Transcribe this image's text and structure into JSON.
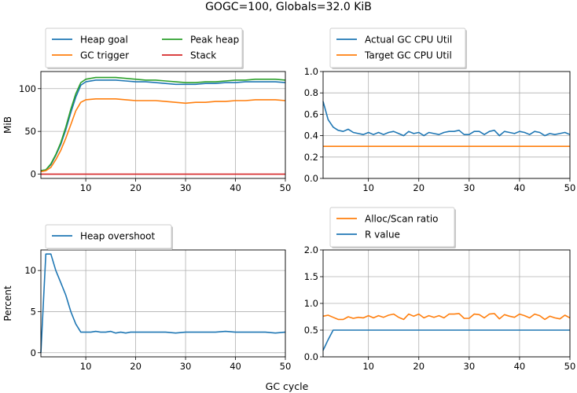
{
  "figure": {
    "title": "GOGC=100, Globals=32.0 KiB",
    "shared_xlabel": "GC cycle"
  },
  "chart_data": [
    {
      "type": "line",
      "panel": "top-left",
      "title": "",
      "xlabel": "",
      "ylabel": "MiB",
      "xlim": [
        1,
        50
      ],
      "ylim": [
        -5,
        120
      ],
      "xticks": [
        10,
        20,
        30,
        40,
        50
      ],
      "yticks": [
        0,
        50,
        100
      ],
      "grid": true,
      "legend": {
        "placement": "above",
        "columns": 2
      },
      "series": [
        {
          "name": "Heap goal",
          "color": "#1f77b4",
          "x": [
            1,
            2,
            3,
            4,
            5,
            6,
            7,
            8,
            9,
            10,
            12,
            14,
            16,
            18,
            20,
            22,
            24,
            26,
            28,
            30,
            32,
            34,
            36,
            38,
            40,
            42,
            44,
            46,
            48,
            50
          ],
          "y": [
            4,
            5,
            11,
            22,
            35,
            52,
            72,
            90,
            104,
            108,
            110,
            110,
            110,
            109,
            108,
            108,
            107,
            106,
            105,
            105,
            105,
            106,
            106,
            107,
            107,
            108,
            108,
            108,
            108,
            107
          ]
        },
        {
          "name": "Peak heap",
          "color": "#2ca02c",
          "x": [
            1,
            2,
            3,
            4,
            5,
            6,
            7,
            8,
            9,
            10,
            12,
            14,
            16,
            18,
            20,
            22,
            24,
            26,
            28,
            30,
            32,
            34,
            36,
            38,
            40,
            42,
            44,
            46,
            48,
            50
          ],
          "y": [
            4,
            5,
            12,
            23,
            37,
            55,
            76,
            94,
            107,
            111,
            113,
            113,
            113,
            112,
            111,
            110,
            110,
            109,
            108,
            107,
            107,
            108,
            108,
            109,
            110,
            110,
            111,
            111,
            111,
            110
          ]
        },
        {
          "name": "GC trigger",
          "color": "#ff7f0e",
          "x": [
            1,
            2,
            3,
            4,
            5,
            6,
            7,
            8,
            9,
            10,
            12,
            14,
            16,
            18,
            20,
            22,
            24,
            26,
            28,
            30,
            32,
            34,
            36,
            38,
            40,
            42,
            44,
            46,
            48,
            50
          ],
          "y": [
            3,
            4,
            8,
            17,
            28,
            42,
            58,
            74,
            84,
            87,
            88,
            88,
            88,
            87,
            86,
            86,
            86,
            85,
            84,
            83,
            84,
            84,
            85,
            85,
            86,
            86,
            87,
            87,
            87,
            86
          ]
        },
        {
          "name": "Stack",
          "color": "#d62728",
          "x": [
            1,
            50
          ],
          "y": [
            0,
            0
          ]
        }
      ]
    },
    {
      "type": "line",
      "panel": "top-right",
      "title": "",
      "xlabel": "",
      "ylabel": "",
      "xlim": [
        1,
        50
      ],
      "ylim": [
        0,
        1.0
      ],
      "xticks": [
        10,
        20,
        30,
        40,
        50
      ],
      "yticks": [
        "0.0",
        "0.2",
        "0.4",
        "0.6",
        "0.8",
        "1.0"
      ],
      "grid": true,
      "legend": {
        "placement": "above",
        "columns": 1
      },
      "series": [
        {
          "name": "Actual GC CPU Util",
          "color": "#1f77b4",
          "x": [
            1,
            2,
            3,
            4,
            5,
            6,
            7,
            8,
            9,
            10,
            11,
            12,
            13,
            14,
            15,
            16,
            17,
            18,
            19,
            20,
            21,
            22,
            23,
            24,
            25,
            26,
            27,
            28,
            29,
            30,
            31,
            32,
            33,
            34,
            35,
            36,
            37,
            38,
            39,
            40,
            41,
            42,
            43,
            44,
            45,
            46,
            47,
            48,
            49,
            50
          ],
          "y": [
            0.72,
            0.55,
            0.48,
            0.45,
            0.44,
            0.46,
            0.43,
            0.42,
            0.41,
            0.43,
            0.41,
            0.43,
            0.41,
            0.43,
            0.44,
            0.42,
            0.4,
            0.44,
            0.42,
            0.43,
            0.4,
            0.43,
            0.42,
            0.41,
            0.43,
            0.44,
            0.44,
            0.45,
            0.41,
            0.41,
            0.44,
            0.44,
            0.41,
            0.44,
            0.45,
            0.4,
            0.44,
            0.43,
            0.42,
            0.44,
            0.43,
            0.41,
            0.44,
            0.43,
            0.4,
            0.42,
            0.41,
            0.42,
            0.43,
            0.41
          ]
        },
        {
          "name": "Target GC CPU Util",
          "color": "#ff7f0e",
          "x": [
            1,
            50
          ],
          "y": [
            0.3,
            0.3
          ]
        }
      ]
    },
    {
      "type": "line",
      "panel": "bottom-left",
      "title": "",
      "xlabel": "",
      "ylabel": "Percent",
      "xlim": [
        1,
        50
      ],
      "ylim": [
        -0.5,
        12.5
      ],
      "xticks": [
        10,
        20,
        30,
        40,
        50
      ],
      "yticks": [
        0,
        5,
        10
      ],
      "grid": true,
      "legend": {
        "placement": "above",
        "columns": 1
      },
      "series": [
        {
          "name": "Heap overshoot",
          "color": "#1f77b4",
          "x": [
            1,
            2,
            3,
            4,
            5,
            6,
            7,
            8,
            9,
            10,
            11,
            12,
            13,
            14,
            15,
            16,
            17,
            18,
            19,
            20,
            22,
            24,
            26,
            28,
            30,
            32,
            34,
            36,
            38,
            40,
            42,
            44,
            46,
            48,
            50
          ],
          "y": [
            0,
            12,
            12,
            10,
            8.5,
            7,
            5,
            3.5,
            2.5,
            2.5,
            2.5,
            2.6,
            2.5,
            2.5,
            2.6,
            2.4,
            2.5,
            2.4,
            2.5,
            2.5,
            2.5,
            2.5,
            2.5,
            2.4,
            2.5,
            2.5,
            2.5,
            2.5,
            2.6,
            2.5,
            2.5,
            2.5,
            2.5,
            2.4,
            2.5
          ]
        }
      ]
    },
    {
      "type": "line",
      "panel": "bottom-right",
      "title": "",
      "xlabel": "",
      "ylabel": "",
      "xlim": [
        1,
        50
      ],
      "ylim": [
        0,
        2.0
      ],
      "xticks": [
        10,
        20,
        30,
        40,
        50
      ],
      "yticks": [
        "0.0",
        "0.5",
        "1.0",
        "1.5",
        "2.0"
      ],
      "grid": true,
      "legend": {
        "placement": "above",
        "columns": 1
      },
      "series": [
        {
          "name": "Alloc/Scan ratio",
          "color": "#ff7f0e",
          "x": [
            1,
            2,
            3,
            4,
            5,
            6,
            7,
            8,
            9,
            10,
            11,
            12,
            13,
            14,
            15,
            16,
            17,
            18,
            19,
            20,
            21,
            22,
            23,
            24,
            25,
            26,
            27,
            28,
            29,
            30,
            31,
            32,
            33,
            34,
            35,
            36,
            37,
            38,
            39,
            40,
            41,
            42,
            43,
            44,
            45,
            46,
            47,
            48,
            49,
            50
          ],
          "y": [
            0.76,
            0.78,
            0.74,
            0.7,
            0.7,
            0.75,
            0.72,
            0.74,
            0.73,
            0.77,
            0.73,
            0.77,
            0.74,
            0.78,
            0.8,
            0.74,
            0.7,
            0.8,
            0.76,
            0.8,
            0.73,
            0.77,
            0.74,
            0.77,
            0.73,
            0.8,
            0.8,
            0.81,
            0.72,
            0.72,
            0.8,
            0.79,
            0.73,
            0.8,
            0.81,
            0.71,
            0.79,
            0.76,
            0.74,
            0.8,
            0.77,
            0.73,
            0.8,
            0.77,
            0.7,
            0.76,
            0.73,
            0.71,
            0.78,
            0.73
          ]
        },
        {
          "name": "R value",
          "color": "#1f77b4",
          "x": [
            1,
            2,
            3,
            4,
            50
          ],
          "y": [
            0.12,
            0.32,
            0.5,
            0.5,
            0.5
          ]
        }
      ]
    }
  ]
}
